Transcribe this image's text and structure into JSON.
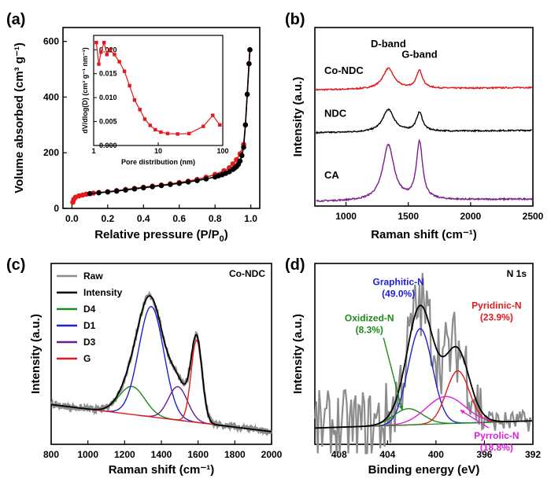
{
  "chart_data": [
    {
      "id": "a",
      "panel_label": "(a)",
      "type": "line",
      "xlabel": "Relative pressure (P/P",
      "xlabel_sub": "0",
      "xlabel_close": ")",
      "ylabel": "Volume absorbed (cm³ g⁻¹)",
      "xlim": [
        -0.05,
        1.05
      ],
      "ylim": [
        0,
        650
      ],
      "xticks": [
        "0.0",
        "0.2",
        "0.4",
        "0.6",
        "0.8",
        "1.0"
      ],
      "xtick_values": [
        0,
        0.2,
        0.4,
        0.6,
        0.8,
        1.0
      ],
      "yticks": [
        "0",
        "200",
        "400",
        "600"
      ],
      "ytick_values": [
        0,
        200,
        400,
        600
      ],
      "series": [
        {
          "name": "adsorption",
          "color": "#e31a1c",
          "x": [
            0.005,
            0.01,
            0.02,
            0.04,
            0.06,
            0.08,
            0.1,
            0.12,
            0.15,
            0.2,
            0.25,
            0.3,
            0.35,
            0.4,
            0.45,
            0.5,
            0.55,
            0.6,
            0.65,
            0.7,
            0.75,
            0.8,
            0.85,
            0.88,
            0.9,
            0.92,
            0.94,
            0.96,
            0.97,
            0.98,
            0.99,
            0.995
          ],
          "y": [
            22,
            32,
            40,
            45,
            48,
            51,
            53,
            55,
            57,
            60,
            64,
            68,
            72,
            76,
            80,
            84,
            88,
            93,
            98,
            104,
            112,
            122,
            135,
            146,
            160,
            175,
            196,
            230,
            300,
            410,
            520,
            570
          ]
        },
        {
          "name": "desorption",
          "color": "#000000",
          "x": [
            0.995,
            0.99,
            0.98,
            0.97,
            0.96,
            0.95,
            0.94,
            0.93,
            0.92,
            0.91,
            0.9,
            0.88,
            0.86,
            0.84,
            0.82,
            0.8,
            0.75,
            0.7,
            0.65,
            0.6,
            0.55,
            0.5,
            0.45,
            0.4,
            0.35,
            0.3,
            0.25,
            0.2,
            0.15,
            0.1
          ],
          "y": [
            570,
            520,
            410,
            300,
            220,
            190,
            170,
            158,
            150,
            145,
            140,
            132,
            126,
            121,
            117,
            113,
            106,
            100,
            95,
            90,
            86,
            82,
            78,
            74,
            70,
            66,
            62,
            59,
            56,
            53
          ]
        }
      ],
      "inset": {
        "type": "line",
        "color": "#e31a1c",
        "xscale": "log",
        "xlabel": "Pore distribution (nm)",
        "ylabel": "dV/dlog(D) (cm³ g⁻¹ nm⁻¹)",
        "xlim": [
          1,
          100
        ],
        "ylim": [
          0.0,
          0.023
        ],
        "xticks": [
          "1",
          "10",
          "100"
        ],
        "xtick_values": [
          1,
          10,
          100
        ],
        "yticks": [
          "0.000",
          "0.005",
          "0.010",
          "0.015",
          "0.020"
        ],
        "ytick_values": [
          0,
          0.005,
          0.01,
          0.015,
          0.02
        ],
        "x": [
          1.1,
          1.2,
          1.3,
          1.45,
          1.6,
          1.8,
          2.1,
          2.5,
          3.0,
          3.6,
          4.3,
          5.2,
          6.2,
          7.5,
          9.0,
          11,
          14,
          20,
          30,
          50,
          70,
          90
        ],
        "y": [
          0.0215,
          0.017,
          0.0195,
          0.0215,
          0.019,
          0.02,
          0.019,
          0.0175,
          0.0155,
          0.0125,
          0.0095,
          0.0075,
          0.0055,
          0.0042,
          0.0033,
          0.0028,
          0.0025,
          0.0024,
          0.0025,
          0.004,
          0.0063,
          0.0043
        ]
      }
    },
    {
      "id": "b",
      "panel_label": "(b)",
      "type": "line",
      "xlabel": "Raman shift (cm⁻¹)",
      "ylabel": "Intensity (a.u.)",
      "xlim": [
        750,
        2500
      ],
      "ylim": [
        0,
        10
      ],
      "xticks": [
        "1000",
        "1500",
        "2000",
        "2500"
      ],
      "xtick_values": [
        1000,
        1500,
        2000,
        2500
      ],
      "annotations": [
        {
          "text": "D-band",
          "x": 1340,
          "y": 8.9
        },
        {
          "text": "G-band",
          "x": 1590,
          "y": 8.3
        }
      ],
      "series": [
        {
          "name": "Co-NDC",
          "color": "#e31a1c",
          "baseline": 6.5,
          "D": 1.15,
          "G": 1.0,
          "noise": 0.07
        },
        {
          "name": "NDC",
          "color": "#000000",
          "baseline": 4.1,
          "D": 1.25,
          "G": 1.05,
          "noise": 0.07
        },
        {
          "name": "CA",
          "color": "#7b1f8c",
          "baseline": 0.25,
          "D": 3.1,
          "G": 3.2,
          "noise": 0.08
        }
      ]
    },
    {
      "id": "c",
      "panel_label": "(c)",
      "type": "line",
      "sample": "Co-NDC",
      "xlabel": "Raman shift (cm⁻¹)",
      "ylabel": "Intensity (a.u.)",
      "xlim": [
        800,
        2000
      ],
      "ylim": [
        0,
        10
      ],
      "xticks": [
        "800",
        "1000",
        "1200",
        "1400",
        "1600",
        "1800",
        "2000"
      ],
      "xtick_values": [
        800,
        1000,
        1200,
        1400,
        1600,
        1800,
        2000
      ],
      "legend_position": "top-left",
      "baseline": {
        "x0": 800,
        "y0": 2.2,
        "x1": 2000,
        "y1": 0.7
      },
      "components": [
        {
          "name": "D4",
          "color": "#1a8a1a",
          "center": 1240,
          "height": 1.55,
          "width": 70
        },
        {
          "name": "D1",
          "color": "#1f1fd6",
          "center": 1345,
          "height": 6.1,
          "width": 68
        },
        {
          "name": "D3",
          "color": "#6a1d8a",
          "center": 1490,
          "height": 1.85,
          "width": 52
        },
        {
          "name": "G",
          "color": "#e31a1c",
          "center": 1592,
          "height": 4.55,
          "width": 30
        }
      ],
      "legend": [
        {
          "name": "Raw",
          "color": "#8c8c8c"
        },
        {
          "name": "Intensity",
          "color": "#000000"
        },
        {
          "name": "D4",
          "color": "#1a8a1a"
        },
        {
          "name": "D1",
          "color": "#1f1fd6"
        },
        {
          "name": "D3",
          "color": "#6a1d8a"
        },
        {
          "name": "G",
          "color": "#e31a1c"
        }
      ]
    },
    {
      "id": "d",
      "panel_label": "(d)",
      "type": "line",
      "sample": "N 1s",
      "xlabel": "Binding energy (eV)",
      "ylabel": "Intensity (a.u.)",
      "xlim": [
        410,
        392
      ],
      "ylim": [
        0,
        10
      ],
      "xticks": [
        "408",
        "404",
        "400",
        "396",
        "392"
      ],
      "xtick_values": [
        408,
        404,
        400,
        396,
        392
      ],
      "baseline": {
        "x0": 410,
        "y0": 0.9,
        "x1": 392,
        "y1": 1.3
      },
      "components": [
        {
          "name": "Graphitic-N",
          "pct": "(49.0%)",
          "color": "#1f1fd6",
          "center": 401.3,
          "height": 5.3,
          "width": 1.0
        },
        {
          "name": "Oxidized-N",
          "pct": "(8.3%)",
          "color": "#1a8a1a",
          "center": 402.3,
          "height": 0.9,
          "width": 1.2
        },
        {
          "name": "Pyridinic-N",
          "pct": "(23.9%)",
          "color": "#e31a1c",
          "center": 398.2,
          "height": 2.9,
          "width": 0.95
        },
        {
          "name": "Pyrrolic-N",
          "pct": "(18.8%)",
          "color": "#e01ee0",
          "center": 399.2,
          "height": 1.5,
          "width": 1.6
        }
      ],
      "annotations": [
        {
          "name": "Graphitic-N",
          "pct": "(49.0%)",
          "color": "#1f1fd6",
          "x": 403.1,
          "y": 8.8
        },
        {
          "name": "Oxidized-N",
          "pct": "(8.3%)",
          "color": "#1a8a1a",
          "x": 405.5,
          "y": 6.8
        },
        {
          "name": "Pyridinic-N",
          "pct": "(23.9%)",
          "color": "#e31a1c",
          "x": 395.0,
          "y": 7.5
        },
        {
          "name": "Pyrrolic-N",
          "pct": "(18.8%)",
          "color": "#e01ee0",
          "x": 395.0,
          "y": 0.3
        }
      ]
    }
  ]
}
